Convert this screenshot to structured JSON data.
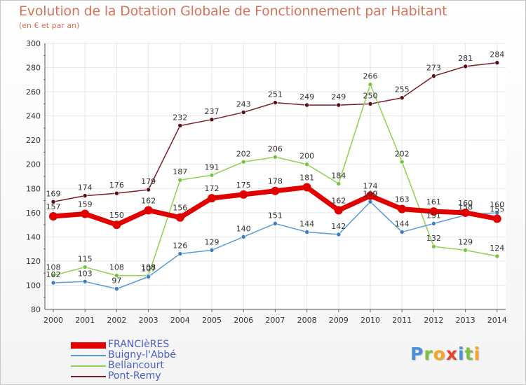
{
  "header": {
    "title": "Evolution de la Dotation Globale de Fonctionnement par Habitant",
    "subtitle": "(en € et par an)"
  },
  "logo": {
    "text": "Proxiti",
    "letters": [
      "P",
      "r",
      "o",
      "x",
      "i",
      "t",
      "i"
    ],
    "colors": [
      "#4a90d9",
      "#7cc242",
      "#f5a623",
      "#e8432e",
      "#4a90d9",
      "#7cc242",
      "#f5a623"
    ]
  },
  "chart_data": {
    "type": "line",
    "title": "Evolution de la Dotation Globale de Fonctionnement par Habitant",
    "subtitle": "(en € et par an)",
    "x": [
      "2000",
      "2001",
      "2002",
      "2003",
      "2004",
      "2005",
      "2006",
      "2007",
      "2008",
      "2009",
      "2010",
      "2011",
      "2012",
      "2013",
      "2014"
    ],
    "ylim": [
      80,
      300
    ],
    "yticks": [
      80,
      100,
      120,
      140,
      160,
      180,
      200,
      220,
      240,
      260,
      280,
      300
    ],
    "grid": true,
    "legend_position": "bottom-left",
    "series": [
      {
        "name": "Pont-Remy",
        "color": "#7a1e28",
        "marker_color": "#5a0f18",
        "values": [
          169,
          174,
          176,
          179,
          232,
          237,
          243,
          251,
          249,
          249,
          250,
          255,
          273,
          281,
          284
        ],
        "labels": [
          "169",
          "174",
          "176",
          "179",
          "232",
          "237",
          "243",
          "251",
          "249",
          "249",
          "250",
          "255",
          "273",
          "281",
          "284"
        ]
      },
      {
        "name": "Bellancourt",
        "color": "#8fd14f",
        "marker_color": "#7cc242",
        "values": [
          108,
          115,
          108,
          108,
          187,
          191,
          202,
          206,
          200,
          184,
          266,
          202,
          132,
          129,
          124
        ],
        "labels": [
          "108",
          "115",
          "108",
          "108",
          "187",
          "191",
          "202",
          "206",
          "200",
          "184",
          "266",
          "202",
          "132",
          "129",
          "124"
        ]
      },
      {
        "name": "Buigny-l'Abbé",
        "color": "#5b9bd5",
        "marker_color": "#3a7fc2",
        "values": [
          102,
          103,
          97,
          107,
          126,
          129,
          140,
          151,
          144,
          142,
          169,
          144,
          151,
          158,
          160
        ],
        "labels": [
          "102",
          "103",
          "97",
          "107",
          "126",
          "129",
          "140",
          "151",
          "144",
          "142",
          "169",
          "144",
          "151",
          "158",
          "160"
        ]
      },
      {
        "name": "FRANCIèRES",
        "color": "#e00000",
        "marker_color": "#e00000",
        "values": [
          157,
          159,
          150,
          162,
          156,
          172,
          175,
          178,
          181,
          162,
          174,
          163,
          161,
          160,
          155
        ],
        "labels": [
          "157",
          "159",
          "150",
          "162",
          "156",
          "172",
          "175",
          "178",
          "181",
          "162",
          "174",
          "163",
          "161",
          "160",
          "155"
        ]
      }
    ],
    "legend": [
      "FRANCIèRES",
      "Buigny-l'Abbé",
      "Bellancourt",
      "Pont-Remy"
    ]
  }
}
